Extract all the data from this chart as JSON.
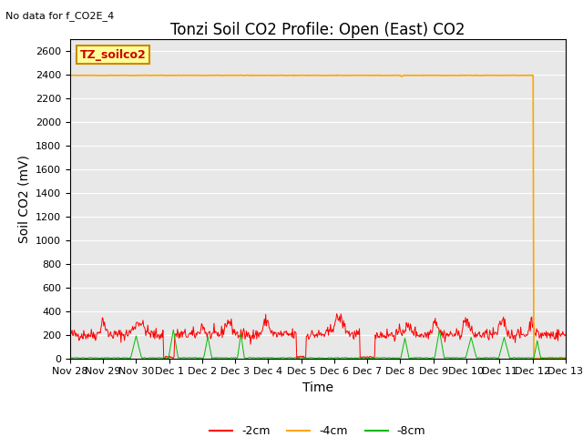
{
  "title": "Tonzi Soil CO2 Profile: Open (East) CO2",
  "subtitle": "No data for f_CO2E_4",
  "ylabel": "Soil CO2 (mV)",
  "xlabel": "Time",
  "legend_label": "TZ_soilco2",
  "ylim": [
    0,
    2700
  ],
  "yticks": [
    0,
    200,
    400,
    600,
    800,
    1000,
    1200,
    1400,
    1600,
    1800,
    2000,
    2200,
    2400,
    2600
  ],
  "xtick_labels": [
    "Nov 28",
    "Nov 29",
    "Nov 30",
    "Dec 1",
    "Dec 2",
    "Dec 3",
    "Dec 4",
    "Dec 5",
    "Dec 6",
    "Dec 7",
    "Dec 8",
    "Dec 9",
    "Dec 10",
    "Dec 11",
    "Dec 12",
    "Dec 13"
  ],
  "bg_color": "#e8e8e8",
  "legend_entries": [
    "-2cm",
    "-4cm",
    "-8cm"
  ],
  "legend_colors": [
    "#ff0000",
    "#ffa500",
    "#00bb00"
  ],
  "line_neg2cm_color": "#ff0000",
  "line_neg4cm_color": "#ffa500",
  "line_neg8cm_color": "#00bb00",
  "title_fontsize": 12,
  "axis_fontsize": 10,
  "tick_fontsize": 8
}
